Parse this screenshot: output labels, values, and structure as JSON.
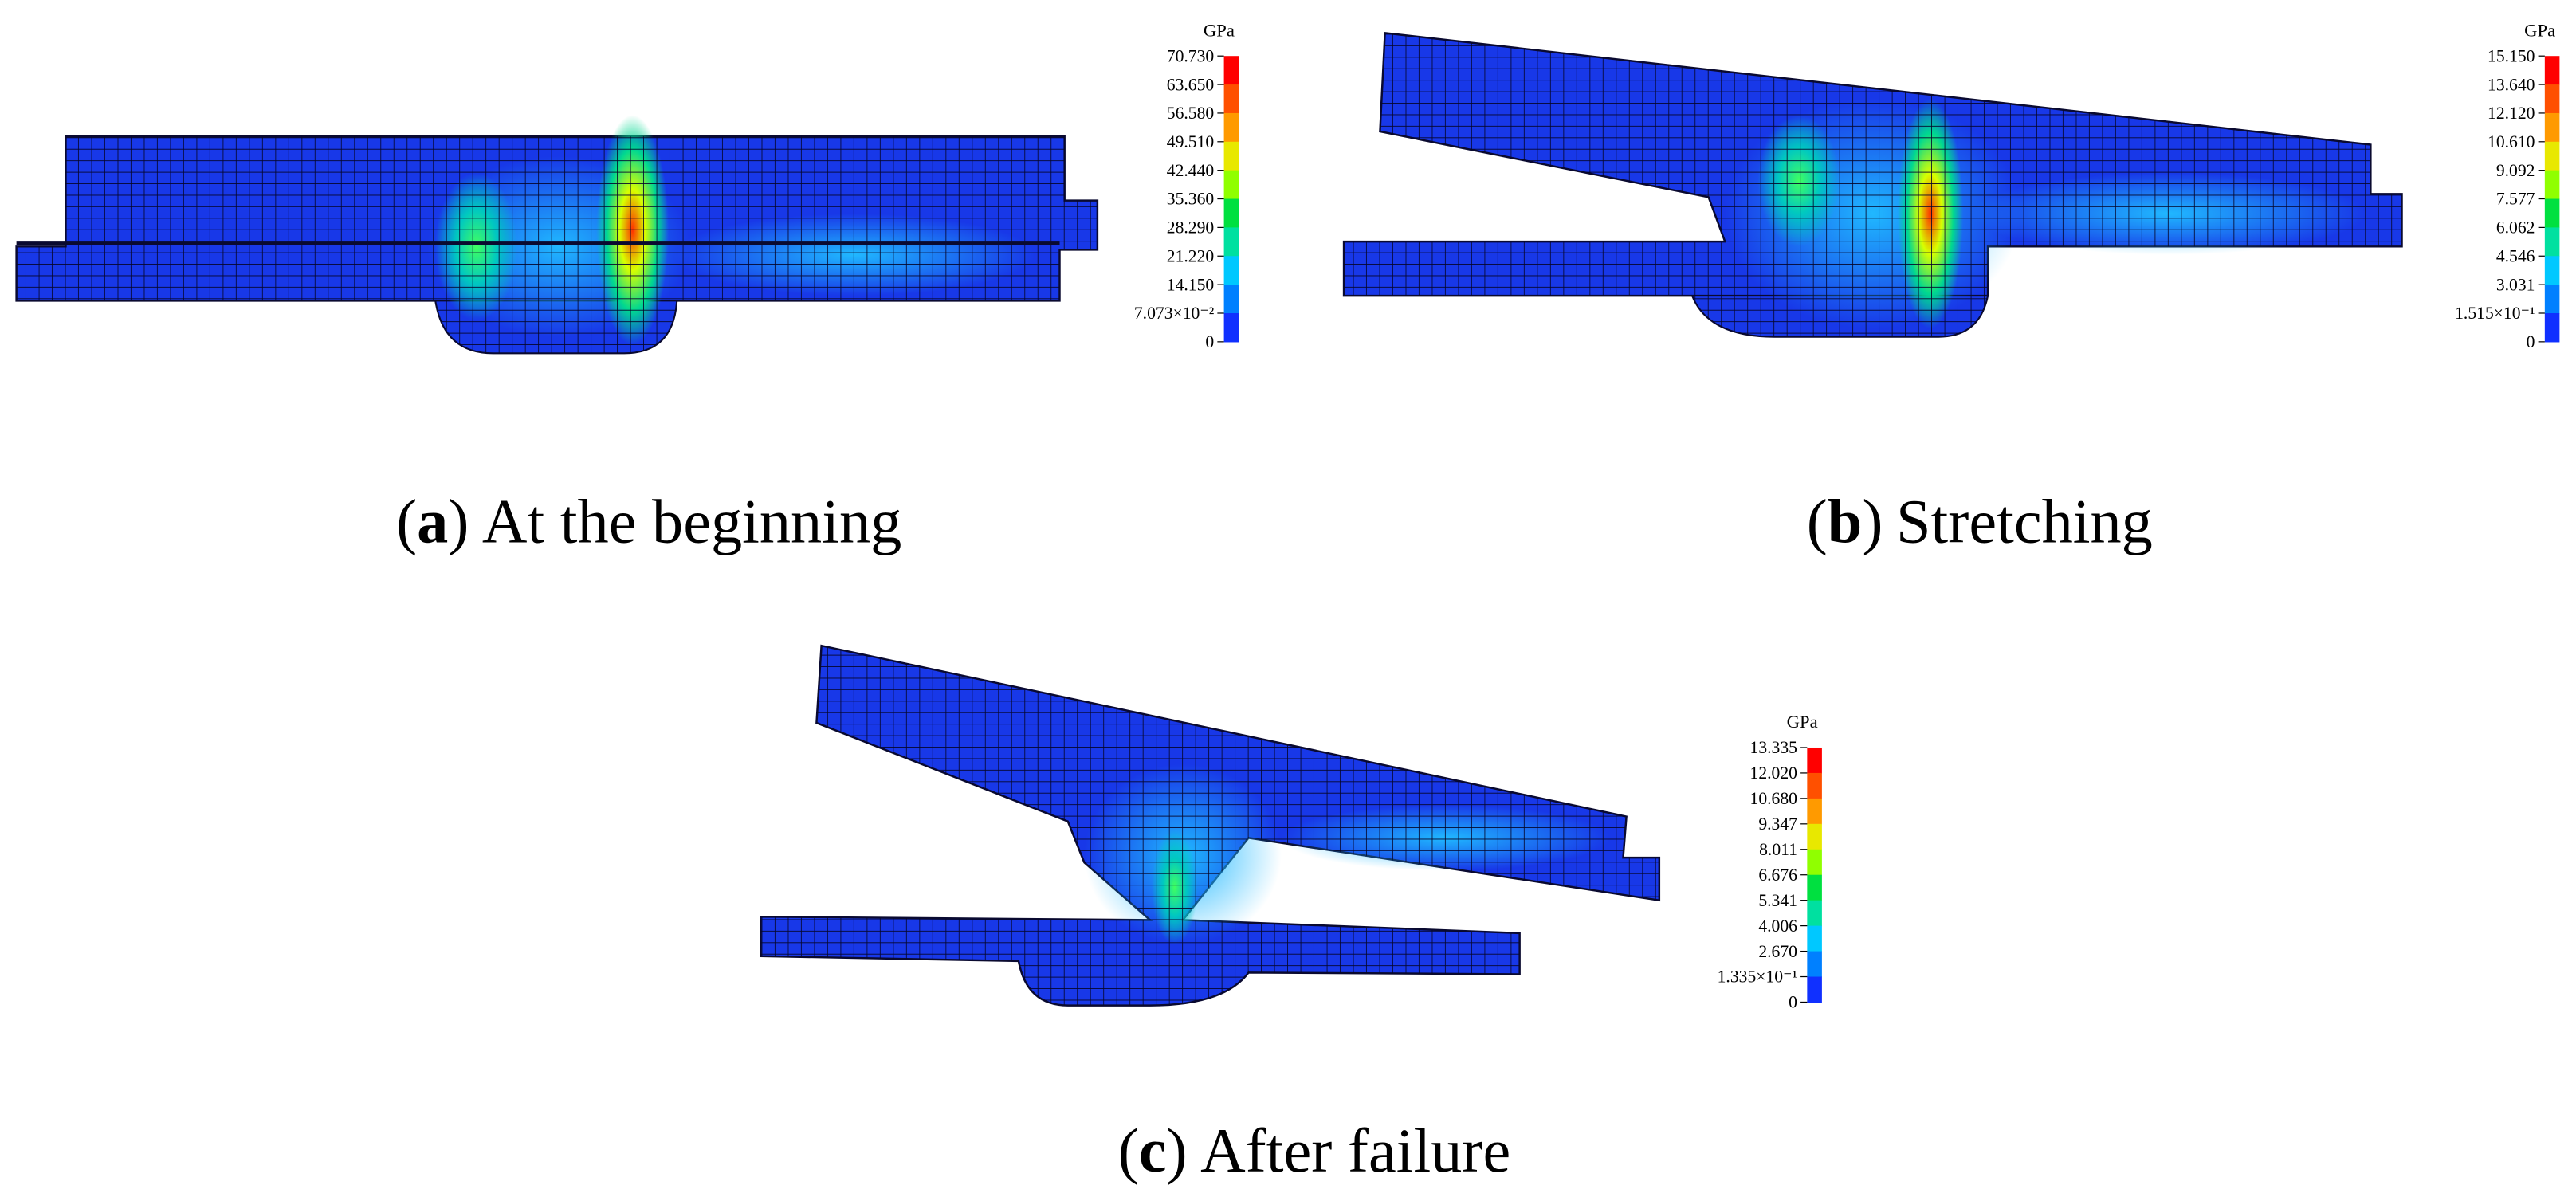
{
  "panels": [
    {
      "caption": {
        "open": "(",
        "label": "a",
        "close": ")",
        "text": "At the beginning"
      },
      "colorbar": {
        "unit": "GPa",
        "ticks": [
          "70.730",
          "63.650",
          "56.580",
          "49.510",
          "42.440",
          "35.360",
          "28.290",
          "21.220",
          "14.150",
          "7.073×10⁻²",
          "0"
        ]
      }
    },
    {
      "caption": {
        "open": "(",
        "label": "b",
        "close": ")",
        "text": "Stretching"
      },
      "colorbar": {
        "unit": "GPa",
        "ticks": [
          "15.150",
          "13.640",
          "12.120",
          "10.610",
          "9.092",
          "7.577",
          "6.062",
          "4.546",
          "3.031",
          "1.515×10⁻¹",
          "0"
        ]
      }
    },
    {
      "caption": {
        "open": "(",
        "label": "c",
        "close": ")",
        "text": "After failure"
      },
      "colorbar": {
        "unit": "GPa",
        "ticks": [
          "13.335",
          "12.020",
          "10.680",
          "9.347",
          "8.011",
          "6.676",
          "5.341",
          "4.006",
          "2.670",
          "1.335×10⁻¹",
          "0"
        ]
      }
    }
  ]
}
